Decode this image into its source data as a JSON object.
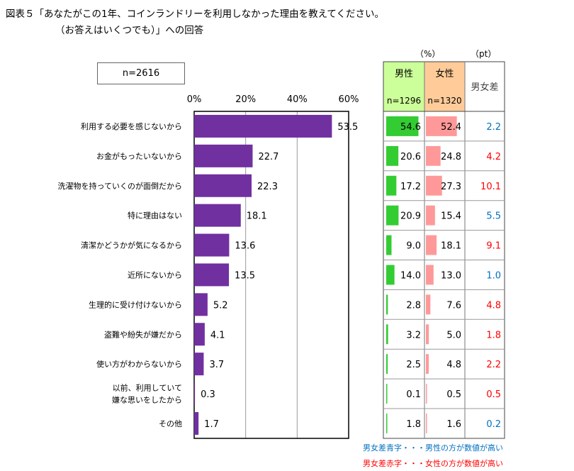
{
  "title": {
    "line1": "図表５「あなたがこの1年、コインランドリーを利用しなかった理由を教えてください。",
    "line2": "（お答えはいくつでも）」への回答"
  },
  "sample_label": "n=2616",
  "colors": {
    "bar": "#7030a0",
    "male_bar": "#33cc33",
    "female_bar": "#ff9999",
    "male_header_bg": "#ccff99",
    "female_header_bg": "#ffcc99",
    "diff_blue": "#0070c0",
    "diff_red": "#ff0000"
  },
  "table": {
    "unit_pct": "（%）",
    "unit_pt": "（pt）",
    "male_header": "男性",
    "female_header": "女性",
    "male_n": "n=1296",
    "female_n": "n=1320",
    "diff_header": "男女差",
    "male_max": 60,
    "female_max": 60
  },
  "legend": {
    "blue": "男女差青字・・・男性の方が数値が高い",
    "red": "男女差赤字・・・女性の方が数値が高い"
  },
  "chart_data": {
    "type": "bar",
    "orientation": "horizontal",
    "title": "あなたがこの1年、コインランドリーを利用しなかった理由",
    "xlim": [
      0,
      60
    ],
    "ticks": [
      "0%",
      "20%",
      "40%",
      "60%"
    ],
    "tick_values": [
      0,
      20,
      40,
      60
    ],
    "categories": [
      "利用する必要を感じないから",
      "お金がもったいないから",
      "洗濯物を持っていくのが面倒だから",
      "特に理由はない",
      "清潔かどうかが気になるから",
      "近所にないから",
      "生理的に受け付けないから",
      "盗難や紛失が嫌だから",
      "使い方がわからないから",
      "以前、利用していて\n嫌な思いをしたから",
      "その他"
    ],
    "values": [
      "53.5",
      "22.7",
      "22.3",
      "18.1",
      "13.6",
      "13.5",
      "5.2",
      "4.1",
      "3.7",
      "0.3",
      "1.7"
    ],
    "male": [
      "54.6",
      "20.6",
      "17.2",
      "20.9",
      "9.0",
      "14.0",
      "2.8",
      "3.2",
      "2.5",
      "0.1",
      "1.8"
    ],
    "female": [
      "52.4",
      "24.8",
      "27.3",
      "15.4",
      "18.1",
      "13.0",
      "7.6",
      "5.0",
      "4.8",
      "0.5",
      "1.6"
    ],
    "diff": [
      "2.2",
      "4.2",
      "10.1",
      "5.5",
      "9.1",
      "1.0",
      "4.8",
      "1.8",
      "2.2",
      "0.5",
      "0.2"
    ],
    "diff_color": [
      "blue",
      "red",
      "red",
      "blue",
      "red",
      "blue",
      "red",
      "red",
      "red",
      "red",
      "blue"
    ]
  }
}
